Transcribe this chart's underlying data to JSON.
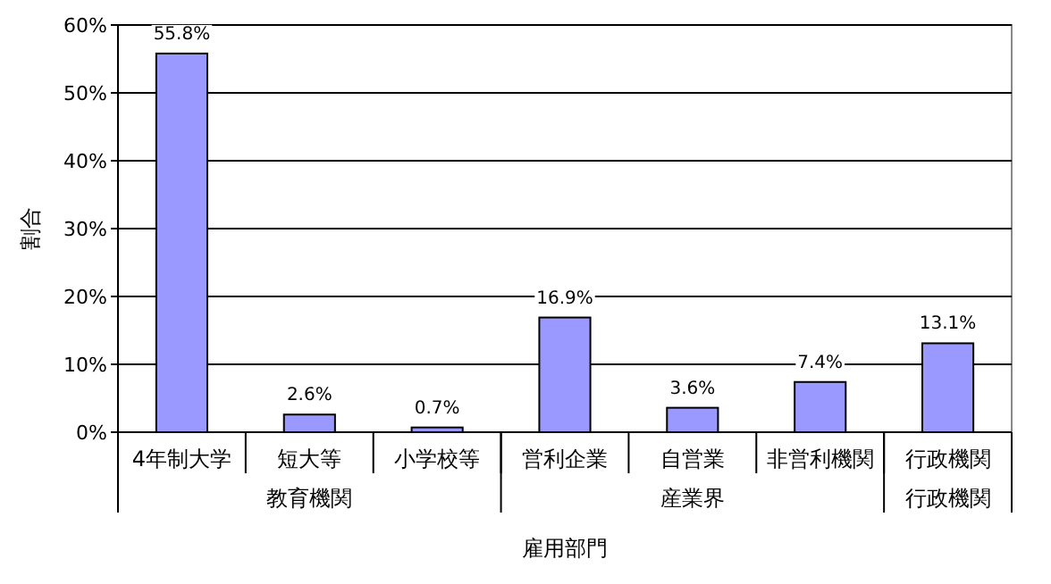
{
  "chart_data": {
    "type": "bar",
    "xlabel": "雇用部門",
    "ylabel": "割合",
    "categories": [
      "4年制大学",
      "短大等",
      "小学校等",
      "営利企業",
      "自営業",
      "非営利機関",
      "行政機関"
    ],
    "values": [
      55.8,
      2.6,
      0.7,
      16.9,
      3.6,
      7.4,
      13.1
    ],
    "value_labels": [
      "55.8%",
      "2.6%",
      "0.7%",
      "16.9%",
      "3.6%",
      "7.4%",
      "13.1%"
    ],
    "color": "#9999ff",
    "ylim": [
      0,
      60
    ],
    "yticks": [
      {
        "value": 0,
        "label": "0%"
      },
      {
        "value": 10,
        "label": "10%"
      },
      {
        "value": 20,
        "label": "20%"
      },
      {
        "value": 30,
        "label": "30%"
      },
      {
        "value": 40,
        "label": "40%"
      },
      {
        "value": 50,
        "label": "50%"
      },
      {
        "value": 60,
        "label": "60%"
      }
    ],
    "grid": "y",
    "annotations": [
      "教育機関",
      "産業界",
      "行政機関"
    ]
  }
}
